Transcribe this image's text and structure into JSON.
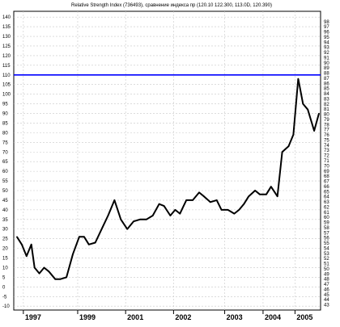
{
  "chart_data": {
    "type": "line",
    "title": "Relative Strength Index (736493), сравнение индекса пр (120.10 122.300, 113.0D, 120.390)",
    "xlabel": "",
    "ylabel": "",
    "x_ticks": [
      "1997",
      "1999",
      "2001",
      "2002",
      "2003",
      "2004",
      "2005"
    ],
    "x_tick_positions": [
      1997.0,
      1998.7,
      2000.2,
      2001.7,
      2003.3,
      2004.5,
      2005.5
    ],
    "xlim": [
      1996.7,
      2006.3
    ],
    "left_axis": {
      "ylim": [
        -12,
        143
      ],
      "ticks": [
        -10,
        -5,
        0,
        5,
        10,
        15,
        20,
        25,
        30,
        35,
        40,
        45,
        50,
        55,
        60,
        65,
        70,
        75,
        80,
        85,
        90,
        95,
        100,
        105,
        110,
        115,
        120,
        125,
        130,
        135,
        140
      ]
    },
    "right_axis": {
      "ylim": [
        42,
        100
      ],
      "ticks": [
        43,
        44,
        45,
        46,
        47,
        48,
        49,
        50,
        51,
        52,
        53,
        54,
        55,
        56,
        57,
        58,
        59,
        60,
        61,
        62,
        63,
        64,
        65,
        66,
        67,
        68,
        69,
        70,
        71,
        72,
        73,
        74,
        75,
        76,
        77,
        78,
        79,
        80,
        81,
        82,
        83,
        84,
        85,
        86,
        87,
        88,
        89,
        90,
        91,
        92,
        93,
        94,
        95,
        96,
        97,
        98
      ]
    },
    "reference_line": {
      "value": 110,
      "axis": "left",
      "color": "#0000ff"
    },
    "series": [
      {
        "color": "#000000",
        "axis": "left",
        "x": [
          1996.8,
          1996.95,
          1997.1,
          1997.25,
          1997.35,
          1997.5,
          1997.65,
          1997.8,
          1998.0,
          1998.15,
          1998.35,
          1998.55,
          1998.75,
          1998.9,
          1999.05,
          1999.25,
          1999.45,
          1999.65,
          1999.85,
          2000.05,
          2000.25,
          2000.45,
          2000.65,
          2000.85,
          2001.05,
          2001.25,
          2001.4,
          2001.6,
          2001.75,
          2001.9,
          2002.1,
          2002.3,
          2002.5,
          2002.65,
          2002.85,
          2003.05,
          2003.2,
          2003.4,
          2003.6,
          2003.75,
          2003.9,
          2004.05,
          2004.25,
          2004.4,
          2004.6,
          2004.75,
          2004.95,
          2005.1,
          2005.3,
          2005.45,
          2005.6
        ],
        "y": [
          26,
          22,
          16,
          22,
          10,
          7,
          10,
          8,
          4,
          4,
          5,
          17,
          26,
          26,
          22,
          23,
          30,
          37,
          45,
          35,
          30,
          34,
          35,
          35,
          37,
          43,
          42,
          37,
          40,
          38,
          45,
          45,
          49,
          47,
          44,
          45,
          40,
          40,
          38,
          40,
          43,
          47,
          50,
          48,
          48,
          52,
          47,
          70,
          73,
          79,
          108
        ]
      },
      {
        "color": "#000000",
        "axis": "left",
        "x": [
          2005.6,
          2005.75,
          2005.9,
          2006.1,
          2006.25
        ],
        "y": [
          108,
          95,
          92,
          81,
          90
        ]
      }
    ]
  }
}
